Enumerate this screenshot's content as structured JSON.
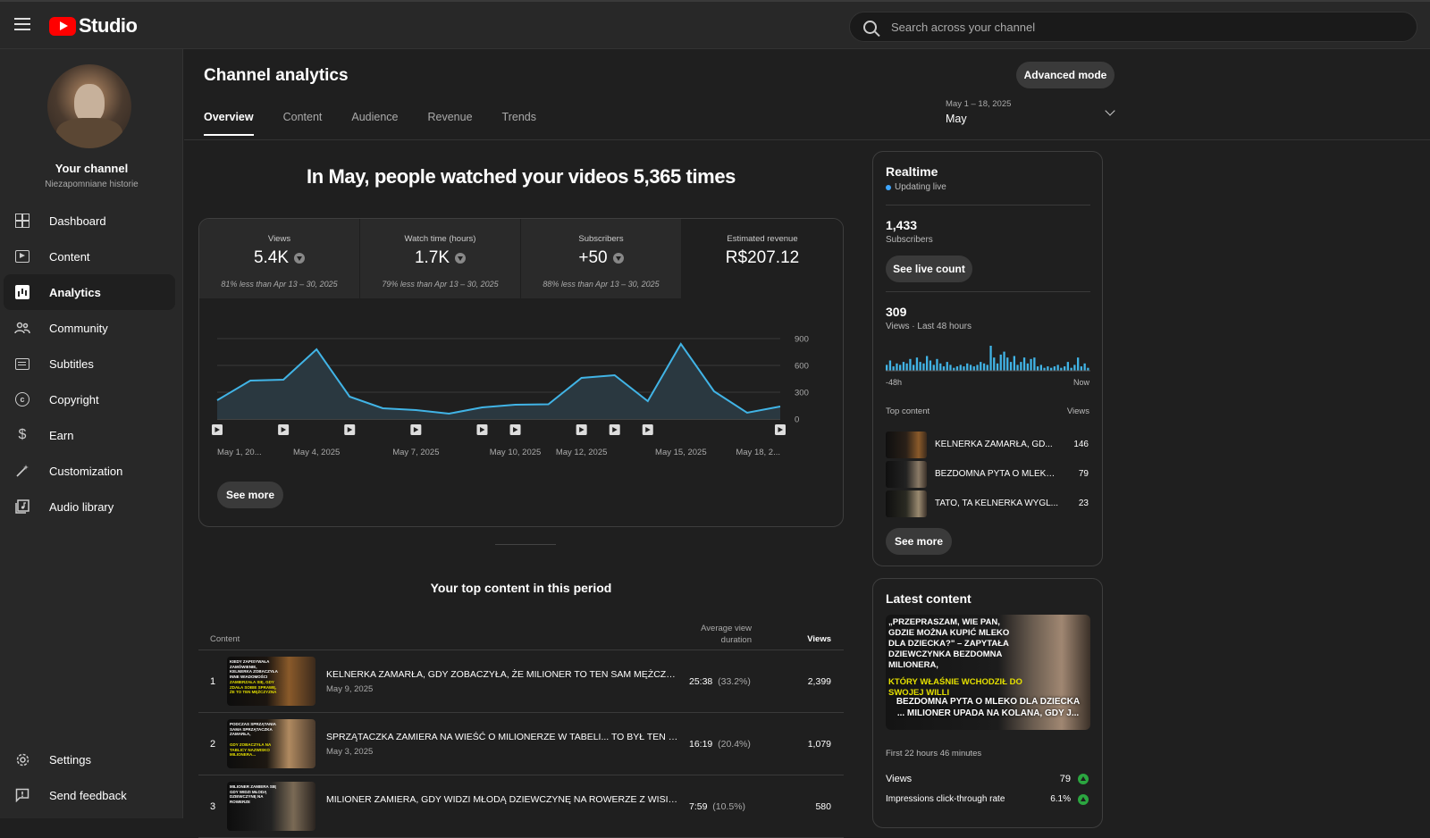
{
  "header": {
    "logo_text": "Studio",
    "search_placeholder": "Search across your channel"
  },
  "sidebar": {
    "channel_title": "Your channel",
    "channel_name": "Niezapomniane historie",
    "items": [
      {
        "label": "Dashboard",
        "icon": "dashboard-icon"
      },
      {
        "label": "Content",
        "icon": "content-icon"
      },
      {
        "label": "Analytics",
        "icon": "analytics-icon",
        "active": true
      },
      {
        "label": "Community",
        "icon": "community-icon"
      },
      {
        "label": "Subtitles",
        "icon": "subtitles-icon"
      },
      {
        "label": "Copyright",
        "icon": "copyright-icon"
      },
      {
        "label": "Earn",
        "icon": "earn-icon"
      },
      {
        "label": "Customization",
        "icon": "customization-icon"
      },
      {
        "label": "Audio library",
        "icon": "audio-library-icon"
      }
    ],
    "bottom_items": [
      {
        "label": "Settings",
        "icon": "gear-icon"
      },
      {
        "label": "Send feedback",
        "icon": "feedback-icon"
      }
    ]
  },
  "page": {
    "title": "Channel analytics",
    "advanced_mode": "Advanced mode",
    "tabs": [
      "Overview",
      "Content",
      "Audience",
      "Revenue",
      "Trends"
    ],
    "active_tab": "Overview",
    "date_range": "May 1 – 18, 2025",
    "date_label": "May"
  },
  "overview": {
    "headline": "In May, people watched your videos 5,365 times",
    "metrics": [
      {
        "label": "Views",
        "value": "5.4K",
        "trend": "down",
        "sub": "81% less than Apr 13 – 30, 2025"
      },
      {
        "label": "Watch time (hours)",
        "value": "1.7K",
        "trend": "down",
        "sub": "79% less than Apr 13 – 30, 2025"
      },
      {
        "label": "Subscribers",
        "value": "+50",
        "trend": "down",
        "sub": "88% less than Apr 13 – 30, 2025"
      },
      {
        "label": "Estimated revenue",
        "value": "R$207.12",
        "trend": "",
        "sub": ""
      }
    ],
    "see_more": "See more"
  },
  "chart_data": {
    "type": "area",
    "series": [
      {
        "values": [
          210,
          430,
          440,
          780,
          250,
          120,
          100,
          60,
          130,
          160,
          165,
          460,
          490,
          200,
          840,
          310,
          70,
          140
        ]
      }
    ],
    "y_ticks": [
      "900",
      "600",
      "300",
      "0"
    ],
    "ylim": [
      0,
      900
    ],
    "x_tick_labels": [
      "May 1, 20...",
      "May 4, 2025",
      "May 7, 2025",
      "May 10, 2025",
      "May 12, 2025",
      "May 15, 2025",
      "May 18, 2..."
    ],
    "x_tick_days": [
      1,
      4,
      7,
      10,
      12,
      15,
      18
    ],
    "video_marker_days": [
      1,
      3,
      5,
      7,
      9,
      10,
      12,
      13,
      14,
      18
    ],
    "grid": true
  },
  "top_content": {
    "title": "Your top content in this period",
    "col_content": "Content",
    "col_avd": "Average view duration",
    "col_views": "Views",
    "rows": [
      {
        "rank": "1",
        "title": "KELNERKA ZAMARŁA, GDY ZOBACZYŁA, ŻE MILIONER TO TEN SAM MĘŻCZYZN...",
        "date": "May 9, 2025",
        "avd": "25:38",
        "avd_pct": "(33.2%)",
        "views": "2,399",
        "thumb_text": "KIEDY ZAPISYWAŁA ZAMÓWIENIE, KELNERKA ZOBACZYŁA INNE WIADOMOŚCI",
        "thumb_yellow": "ZAMIERZAŁA SIĘ, GDY ZDAŁA SOBIE SPRAWĘ, ŻE TO TEN MĘŻCZYZNA"
      },
      {
        "rank": "2",
        "title": "SPRZĄTACZKA ZAMIERA NA WIEŚĆ O MILIONERZE W TABELI... TO BYŁ TEN SA...",
        "date": "May 3, 2025",
        "avd": "16:19",
        "avd_pct": "(20.4%)",
        "views": "1,079",
        "thumb_text": "PODCZAS SPRZĄTANIA SAMA SPRZĄTACZKA ZAMARŁA,",
        "thumb_yellow": "GDY ZOBACZYŁA NA TABLICY NAZWISKO MILIONERA..."
      },
      {
        "rank": "3",
        "title": "MILIONER ZAMIERA, GDY WIDZI MŁODĄ DZIEWCZYNĘ NA ROWERZE Z WISIORK...",
        "date": "",
        "avd": "7:59",
        "avd_pct": "(10.5%)",
        "views": "580",
        "thumb_text": "MILIONER ZAMIERA SIĘ GDY WIDZI MŁODĄ DZIEWCZYNĘ NA ROWERZE",
        "thumb_yellow": ""
      }
    ]
  },
  "realtime": {
    "title": "Realtime",
    "status": "Updating live",
    "subscribers_value": "1,433",
    "subscribers_label": "Subscribers",
    "see_live_count": "See live count",
    "views_value": "309",
    "views_label": "Views · Last 48 hours",
    "bars": [
      4,
      7,
      3,
      5,
      4,
      6,
      5,
      8,
      4,
      9,
      6,
      5,
      10,
      7,
      4,
      8,
      5,
      3,
      6,
      4,
      2,
      3,
      4,
      3,
      5,
      4,
      3,
      4,
      6,
      5,
      4,
      17,
      9,
      5,
      11,
      13,
      9,
      6,
      10,
      4,
      6,
      9,
      5,
      8,
      9,
      3,
      4,
      2,
      3,
      2,
      3,
      4,
      2,
      3,
      6,
      2,
      4,
      9,
      3,
      5,
      2
    ],
    "axis_start": "-48h",
    "axis_end": "Now",
    "top_content_label": "Top content",
    "views_col": "Views",
    "top_items": [
      {
        "title": "KELNERKA ZAMARŁA, GD...",
        "views": "146"
      },
      {
        "title": "BEZDOMNA PYTA O MLEKO...",
        "views": "79"
      },
      {
        "title": "TATO, TA KELNERKA WYGL...",
        "views": "23"
      }
    ],
    "see_more": "See more"
  },
  "latest_content": {
    "title": "Latest content",
    "thumb_white": "„PRZEPRASZAM, WIE PAN, GDZIE MOŻNA KUPIĆ MLEKO DLA DZIECKA?\" – ZAPYTAŁA DZIEWCZYNKA BEZDOMNA MILIONERA,",
    "thumb_yellow": "KTÓRY WŁAŚNIE WCHODZIŁ DO SWOJEJ WILLI",
    "thumb_bottom_1": "BEZDOMNA PYTA O MLEKO DLA DZIECKA",
    "thumb_bottom_2": "... MILIONER UPADA NA KOLANA, GDY J...",
    "first_period": "First 22 hours 46 minutes",
    "stat1_label": "Views",
    "stat1_value": "79",
    "stat2_label": "Impressions click-through rate",
    "stat2_value": "6.1%"
  }
}
